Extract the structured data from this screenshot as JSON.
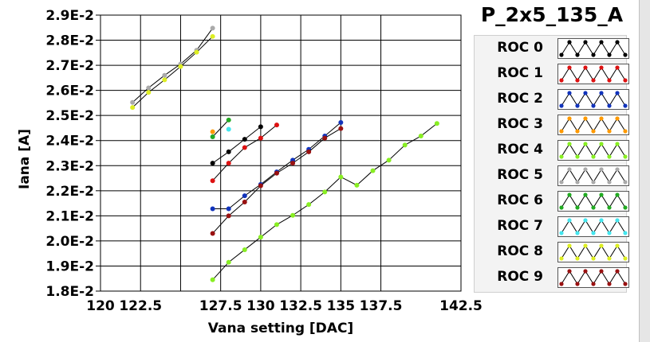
{
  "chart_data": {
    "type": "line",
    "title": "P_2x5_135_A",
    "xlabel": "Vana setting [DAC]",
    "ylabel": "Iana [A]",
    "xlim": [
      120,
      142.5
    ],
    "ylim": [
      0.018,
      0.029
    ],
    "x_ticks": [
      120,
      122.5,
      125,
      127.5,
      130,
      132.5,
      135,
      137.5,
      142.5
    ],
    "x_tick_labels": [
      "120",
      "122.5",
      "",
      "127.5",
      "130",
      "132.5",
      "135",
      "137.5",
      "142.5"
    ],
    "y_ticks": [
      0.018,
      0.019,
      0.02,
      0.021,
      0.022,
      0.023,
      0.024,
      0.025,
      0.026,
      0.027,
      0.028,
      0.029
    ],
    "y_tick_labels": [
      "1.8E-2",
      "1.9E-2",
      "2.0E-2",
      "2.1E-2",
      "2.2E-2",
      "2.3E-2",
      "2.4E-2",
      "2.5E-2",
      "2.6E-2",
      "2.7E-2",
      "2.8E-2",
      "2.9E-2"
    ],
    "grid": true,
    "legend_position": "right",
    "series": [
      {
        "name": "ROC 0",
        "color": "#000000",
        "x": [
          127,
          128,
          129,
          130
        ],
        "y": [
          0.0231,
          0.02355,
          0.02405,
          0.02455
        ]
      },
      {
        "name": "ROC 1",
        "color": "#dd1111",
        "x": [
          127,
          128,
          129,
          130,
          131
        ],
        "y": [
          0.0224,
          0.0231,
          0.02372,
          0.0241,
          0.02462
        ]
      },
      {
        "name": "ROC 2",
        "color": "#1133bb",
        "x": [
          127,
          128,
          129,
          130,
          131,
          132,
          133,
          134,
          135
        ],
        "y": [
          0.02128,
          0.02128,
          0.0218,
          0.02225,
          0.02275,
          0.02322,
          0.02365,
          0.02418,
          0.02472
        ]
      },
      {
        "name": "ROC 3",
        "color": "#ff9900",
        "x": [
          127
        ],
        "y": [
          0.02435
        ]
      },
      {
        "name": "ROC 4",
        "color": "#88ee22",
        "x": [
          127,
          128,
          129,
          130,
          131,
          132,
          133,
          134,
          135,
          136,
          137,
          138,
          139,
          140,
          141
        ],
        "y": [
          0.01845,
          0.01915,
          0.01965,
          0.02015,
          0.02065,
          0.02102,
          0.02145,
          0.02195,
          0.02255,
          0.02222,
          0.0228,
          0.02322,
          0.02382,
          0.02418,
          0.02468
        ]
      },
      {
        "name": "ROC 5",
        "color": "#aaaaaa",
        "x": [
          122,
          123,
          124,
          125,
          126,
          127
        ],
        "y": [
          0.02552,
          0.0261,
          0.0266,
          0.02705,
          0.0276,
          0.02848
        ]
      },
      {
        "name": "ROC 6",
        "color": "#22aa22",
        "x": [
          127,
          128
        ],
        "y": [
          0.02415,
          0.02482
        ]
      },
      {
        "name": "ROC 7",
        "color": "#44e6ee",
        "x": [
          128
        ],
        "y": [
          0.02445
        ]
      },
      {
        "name": "ROC 8",
        "color": "#ddee22",
        "x": [
          122,
          123,
          124,
          125,
          126,
          127
        ],
        "y": [
          0.02532,
          0.02592,
          0.02642,
          0.02695,
          0.02752,
          0.02815
        ]
      },
      {
        "name": "ROC 9",
        "color": "#991111",
        "x": [
          127,
          128,
          129,
          130,
          131,
          132,
          133,
          134,
          135
        ],
        "y": [
          0.0203,
          0.021,
          0.02155,
          0.0222,
          0.0227,
          0.0231,
          0.02355,
          0.0241,
          0.02448
        ]
      }
    ]
  }
}
